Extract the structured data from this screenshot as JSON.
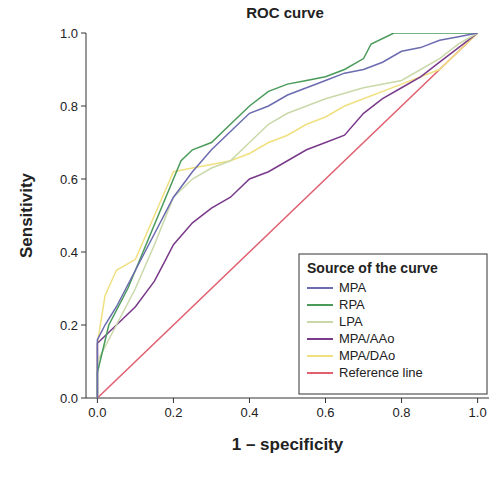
{
  "chart_data": {
    "type": "line",
    "title": "ROC curve",
    "x_label": "1 – specificity",
    "y_label": "Sensitivity",
    "legend_title": "Source of the curve",
    "legend": "bottom-right",
    "grid": false,
    "xlim": [
      -0.03,
      1.03
    ],
    "ylim": [
      0,
      1
    ],
    "xticks": [
      {
        "value": 0,
        "label": "0.0"
      },
      {
        "value": 0.2,
        "label": "0.2"
      },
      {
        "value": 0.4,
        "label": "0.4"
      },
      {
        "value": 0.6,
        "label": "0.6"
      },
      {
        "value": 0.8,
        "label": "0.8"
      },
      {
        "value": 1,
        "label": "1.0"
      }
    ],
    "yticks": [
      {
        "value": 0,
        "label": "0.0"
      },
      {
        "value": 0.2,
        "label": "0.2"
      },
      {
        "value": 0.4,
        "label": "0.4"
      },
      {
        "value": 0.6,
        "label": "0.6"
      },
      {
        "value": 0.8,
        "label": "0.8"
      },
      {
        "value": 1,
        "label": "1.0"
      }
    ],
    "series": [
      {
        "name": "MPA",
        "color": "#6b6bb0",
        "x": [
          0,
          0,
          0.02,
          0.05,
          0.1,
          0.15,
          0.2,
          0.25,
          0.3,
          0.35,
          0.4,
          0.45,
          0.5,
          0.55,
          0.6,
          0.65,
          0.7,
          0.75,
          0.8,
          0.85,
          0.9,
          0.95,
          1
        ],
        "values": [
          0,
          0.16,
          0.2,
          0.25,
          0.35,
          0.45,
          0.55,
          0.62,
          0.68,
          0.73,
          0.78,
          0.8,
          0.83,
          0.85,
          0.87,
          0.89,
          0.9,
          0.92,
          0.95,
          0.96,
          0.98,
          0.99,
          1
        ]
      },
      {
        "name": "RPA",
        "color": "#4a9a5a",
        "x": [
          0,
          0,
          0.03,
          0.08,
          0.12,
          0.18,
          0.22,
          0.25,
          0.3,
          0.35,
          0.4,
          0.45,
          0.5,
          0.55,
          0.6,
          0.65,
          0.7,
          0.72,
          0.78,
          1
        ],
        "values": [
          0,
          0.07,
          0.2,
          0.3,
          0.4,
          0.55,
          0.65,
          0.68,
          0.7,
          0.75,
          0.8,
          0.84,
          0.86,
          0.87,
          0.88,
          0.9,
          0.93,
          0.97,
          1,
          1
        ]
      },
      {
        "name": "LPA",
        "color": "#c9d9a9",
        "x": [
          0,
          0,
          0.05,
          0.1,
          0.15,
          0.2,
          0.25,
          0.3,
          0.35,
          0.4,
          0.45,
          0.5,
          0.55,
          0.6,
          0.7,
          0.8,
          0.85,
          0.9,
          0.95,
          1
        ],
        "values": [
          0,
          0.1,
          0.2,
          0.3,
          0.42,
          0.55,
          0.6,
          0.63,
          0.65,
          0.7,
          0.75,
          0.78,
          0.8,
          0.82,
          0.85,
          0.87,
          0.9,
          0.93,
          0.97,
          1
        ]
      },
      {
        "name": "MPA/AAo",
        "color": "#7a3a8a",
        "x": [
          0,
          0,
          0.05,
          0.1,
          0.15,
          0.18,
          0.2,
          0.25,
          0.3,
          0.35,
          0.4,
          0.45,
          0.5,
          0.55,
          0.6,
          0.65,
          0.7,
          0.75,
          0.8,
          0.85,
          0.9,
          0.95,
          1
        ],
        "values": [
          0,
          0.15,
          0.2,
          0.25,
          0.32,
          0.38,
          0.42,
          0.48,
          0.52,
          0.55,
          0.6,
          0.62,
          0.65,
          0.68,
          0.7,
          0.72,
          0.78,
          0.82,
          0.85,
          0.88,
          0.92,
          0.96,
          1
        ]
      },
      {
        "name": "MPA/DAo",
        "color": "#f0e080",
        "x": [
          0,
          0,
          0.02,
          0.05,
          0.1,
          0.15,
          0.2,
          0.25,
          0.3,
          0.35,
          0.4,
          0.45,
          0.5,
          0.55,
          0.6,
          0.65,
          0.7,
          0.8,
          0.85,
          0.9,
          0.95,
          1
        ],
        "values": [
          0,
          0.15,
          0.28,
          0.35,
          0.38,
          0.5,
          0.62,
          0.63,
          0.64,
          0.65,
          0.67,
          0.7,
          0.72,
          0.75,
          0.77,
          0.8,
          0.82,
          0.86,
          0.88,
          0.9,
          0.95,
          1
        ]
      },
      {
        "name": "Reference line",
        "color": "#e06070",
        "x": [
          0,
          1
        ],
        "values": [
          0,
          1
        ]
      }
    ]
  }
}
